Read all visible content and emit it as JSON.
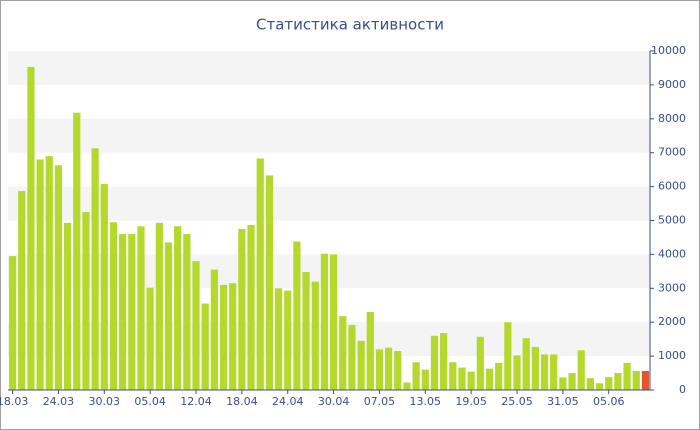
{
  "chart_data": {
    "type": "bar",
    "title": "Статистика активности",
    "categories": [
      "18.03",
      null,
      null,
      null,
      null,
      "24.03",
      null,
      null,
      null,
      null,
      "30.03",
      null,
      null,
      null,
      null,
      "05.04",
      null,
      null,
      null,
      null,
      "12.04",
      null,
      null,
      null,
      null,
      "18.04",
      null,
      null,
      null,
      null,
      "24.04",
      null,
      null,
      null,
      null,
      "30.04",
      null,
      null,
      null,
      null,
      "07.05",
      null,
      null,
      null,
      null,
      "13.05",
      null,
      null,
      null,
      null,
      "19.05",
      null,
      null,
      null,
      null,
      "25.05",
      null,
      null,
      null,
      null,
      "31.05",
      null,
      null,
      null,
      null,
      "05.06",
      null,
      null,
      null,
      null
    ],
    "values": [
      3950,
      5870,
      9530,
      6800,
      6900,
      6630,
      4930,
      8180,
      5250,
      7130,
      6080,
      4950,
      4600,
      4600,
      4830,
      3020,
      4930,
      4350,
      4830,
      4600,
      3800,
      2550,
      3550,
      3100,
      3150,
      4750,
      4870,
      6830,
      6330,
      3000,
      2930,
      4380,
      3480,
      3200,
      4020,
      4000,
      2180,
      1920,
      1450,
      2300,
      1200,
      1250,
      1150,
      220,
      820,
      600,
      1600,
      1680,
      820,
      660,
      540,
      1570,
      630,
      800,
      2000,
      1020,
      1530,
      1270,
      1050,
      1050,
      370,
      500,
      1170,
      350,
      200,
      380,
      500,
      800,
      560,
      560
    ],
    "colors": [
      "#b5d82c",
      "#b5d82c",
      "#b5d82c",
      "#b5d82c",
      "#b5d82c",
      "#b5d82c",
      "#b5d82c",
      "#b5d82c",
      "#b5d82c",
      "#b5d82c",
      "#b5d82c",
      "#b5d82c",
      "#b5d82c",
      "#b5d82c",
      "#b5d82c",
      "#b5d82c",
      "#b5d82c",
      "#b5d82c",
      "#b5d82c",
      "#b5d82c",
      "#b5d82c",
      "#b5d82c",
      "#b5d82c",
      "#b5d82c",
      "#b5d82c",
      "#b5d82c",
      "#b5d82c",
      "#b5d82c",
      "#b5d82c",
      "#b5d82c",
      "#b5d82c",
      "#b5d82c",
      "#b5d82c",
      "#b5d82c",
      "#b5d82c",
      "#b5d82c",
      "#b5d82c",
      "#b5d82c",
      "#b5d82c",
      "#b5d82c",
      "#b5d82c",
      "#b5d82c",
      "#b5d82c",
      "#b5d82c",
      "#b5d82c",
      "#b5d82c",
      "#b5d82c",
      "#b5d82c",
      "#b5d82c",
      "#b5d82c",
      "#b5d82c",
      "#b5d82c",
      "#b5d82c",
      "#b5d82c",
      "#b5d82c",
      "#b5d82c",
      "#b5d82c",
      "#b5d82c",
      "#b5d82c",
      "#b5d82c",
      "#b5d82c",
      "#b5d82c",
      "#b5d82c",
      "#b5d82c",
      "#b5d82c",
      "#b5d82c",
      "#b5d82c",
      "#b5d82c",
      "#b5d82c",
      "#e0572b"
    ],
    "ylim": [
      0,
      10000
    ],
    "yticks": [
      0,
      1000,
      2000,
      3000,
      4000,
      5000,
      6000,
      7000,
      8000,
      9000,
      10000
    ],
    "grid": true,
    "y_axis_side": "right"
  }
}
